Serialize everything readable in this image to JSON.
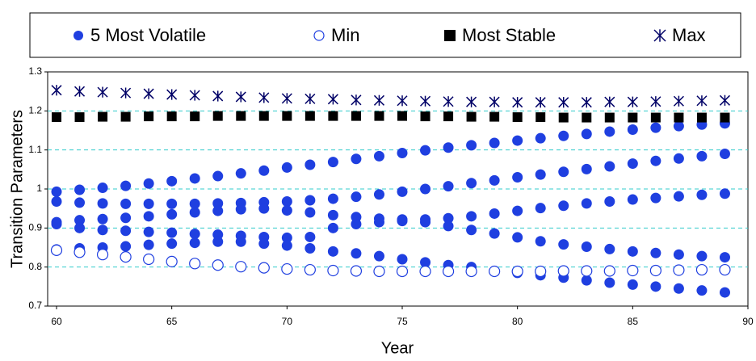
{
  "chart_data": {
    "type": "scatter",
    "x_label": "Year",
    "y_label": "Transition Parameters",
    "xlim": [
      60,
      90
    ],
    "xticks": [
      60,
      65,
      70,
      75,
      80,
      85,
      90
    ],
    "ylim": [
      0.7,
      1.3
    ],
    "yticks": [
      0.7,
      0.8,
      0.9,
      1,
      1.1,
      1.2,
      1.3
    ],
    "grid": true,
    "legend": "top",
    "x": [
      60,
      61,
      62,
      63,
      64,
      65,
      66,
      67,
      68,
      69,
      70,
      71,
      72,
      73,
      74,
      75,
      76,
      77,
      78,
      79,
      80,
      81,
      82,
      83,
      84,
      85,
      86,
      87,
      88,
      89
    ],
    "series": [
      {
        "name": "5 Most Volatile",
        "color": "#1f3fe0",
        "marker": "circle",
        "values": [
          [
            0.993,
            0.998,
            1.003,
            1.008,
            1.014,
            1.02,
            1.027,
            1.033,
            1.04,
            1.047,
            1.055,
            1.062,
            1.069,
            1.077,
            1.084,
            1.092,
            1.099,
            1.106,
            1.112,
            1.118,
            1.124,
            1.13,
            1.136,
            1.141,
            1.147,
            1.152,
            1.157,
            1.161,
            1.165,
            1.168
          ],
          [
            0.968,
            0.965,
            0.963,
            0.962,
            0.962,
            0.962,
            0.962,
            0.963,
            0.964,
            0.966,
            0.968,
            0.971,
            0.975,
            0.98,
            0.986,
            0.993,
            1.0,
            1.007,
            1.015,
            1.022,
            1.03,
            1.037,
            1.044,
            1.051,
            1.058,
            1.065,
            1.072,
            1.078,
            1.084,
            1.09
          ],
          [
            0.915,
            0.92,
            0.923,
            0.926,
            0.93,
            0.935,
            0.94,
            0.944,
            0.948,
            0.95,
            0.945,
            0.94,
            0.933,
            0.928,
            0.924,
            0.922,
            0.922,
            0.925,
            0.93,
            0.937,
            0.944,
            0.951,
            0.957,
            0.963,
            0.968,
            0.973,
            0.977,
            0.981,
            0.985,
            0.988
          ],
          [
            0.91,
            0.9,
            0.895,
            0.893,
            0.89,
            0.888,
            0.885,
            0.883,
            0.88,
            0.877,
            0.875,
            0.877,
            0.9,
            0.91,
            0.915,
            0.918,
            0.915,
            0.905,
            0.895,
            0.886,
            0.876,
            0.866,
            0.858,
            0.852,
            0.846,
            0.84,
            0.836,
            0.832,
            0.828,
            0.825
          ],
          [
            0.845,
            0.848,
            0.85,
            0.853,
            0.857,
            0.86,
            0.862,
            0.865,
            0.865,
            0.86,
            0.855,
            0.848,
            0.84,
            0.835,
            0.828,
            0.82,
            0.812,
            0.805,
            0.8,
            0.79,
            0.785,
            0.779,
            0.773,
            0.766,
            0.76,
            0.755,
            0.75,
            0.745,
            0.74,
            0.735
          ]
        ]
      },
      {
        "name": "Min",
        "color": "#1f3fe0",
        "marker": "open-circle",
        "values": [
          0.843,
          0.838,
          0.832,
          0.826,
          0.82,
          0.814,
          0.809,
          0.805,
          0.801,
          0.798,
          0.795,
          0.793,
          0.791,
          0.79,
          0.789,
          0.789,
          0.789,
          0.789,
          0.789,
          0.789,
          0.789,
          0.789,
          0.79,
          0.79,
          0.79,
          0.791,
          0.791,
          0.792,
          0.793,
          0.793
        ]
      },
      {
        "name": "Most Stable",
        "color": "#000000",
        "marker": "square",
        "values": [
          1.184,
          1.184,
          1.185,
          1.185,
          1.186,
          1.186,
          1.186,
          1.187,
          1.187,
          1.187,
          1.187,
          1.187,
          1.187,
          1.187,
          1.187,
          1.187,
          1.186,
          1.186,
          1.185,
          1.185,
          1.184,
          1.184,
          1.183,
          1.183,
          1.183,
          1.183,
          1.183,
          1.183,
          1.183,
          1.183
        ]
      },
      {
        "name": "Max",
        "color": "#000066",
        "marker": "asterisk",
        "values": [
          1.253,
          1.25,
          1.248,
          1.246,
          1.244,
          1.242,
          1.24,
          1.238,
          1.236,
          1.234,
          1.232,
          1.231,
          1.23,
          1.228,
          1.227,
          1.226,
          1.225,
          1.224,
          1.223,
          1.223,
          1.222,
          1.222,
          1.222,
          1.222,
          1.223,
          1.223,
          1.224,
          1.225,
          1.226,
          1.227
        ]
      }
    ]
  }
}
